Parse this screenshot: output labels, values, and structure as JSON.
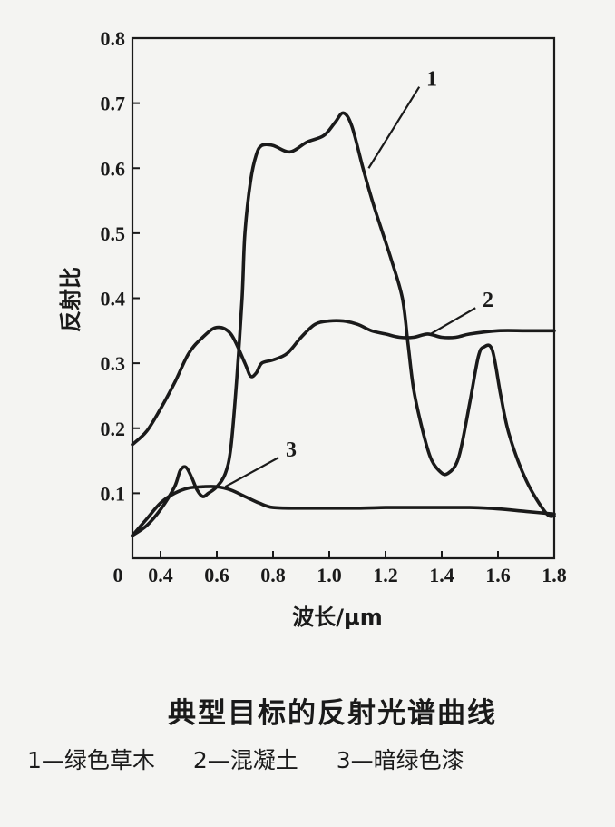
{
  "chart_data": {
    "type": "line",
    "title": "",
    "xlabel": "波长/μm",
    "ylabel": "反射比",
    "xlim": [
      0.3,
      1.8
    ],
    "ylim": [
      0,
      0.8
    ],
    "x_ticks": [
      0.4,
      0.6,
      0.8,
      1.0,
      1.2,
      1.4,
      1.6,
      1.8
    ],
    "x_tick_labels": [
      "0.4",
      "0.6",
      "0.8",
      "1.0",
      "1.2",
      "1.4",
      "1.6",
      "1.8"
    ],
    "y_ticks": [
      0.1,
      0.2,
      0.3,
      0.4,
      0.5,
      0.6,
      0.7,
      0.8
    ],
    "y_tick_labels": [
      "0.1",
      "0.2",
      "0.3",
      "0.4",
      "0.5",
      "0.6",
      "0.7",
      "0.8"
    ],
    "origin_label": "0",
    "grid": false,
    "series": [
      {
        "label": "1",
        "color": "#1a1a1a",
        "x": [
          0.3,
          0.35,
          0.4,
          0.45,
          0.47,
          0.49,
          0.51,
          0.53,
          0.55,
          0.57,
          0.6,
          0.63,
          0.65,
          0.67,
          0.69,
          0.7,
          0.72,
          0.74,
          0.76,
          0.8,
          0.86,
          0.92,
          0.98,
          1.02,
          1.05,
          1.08,
          1.12,
          1.16,
          1.22,
          1.26,
          1.28,
          1.3,
          1.33,
          1.36,
          1.39,
          1.42,
          1.46,
          1.5,
          1.53,
          1.55,
          1.58,
          1.61,
          1.64,
          1.7,
          1.77,
          1.8
        ],
        "y": [
          0.035,
          0.05,
          0.075,
          0.11,
          0.135,
          0.14,
          0.125,
          0.105,
          0.095,
          0.1,
          0.11,
          0.13,
          0.17,
          0.27,
          0.4,
          0.5,
          0.58,
          0.62,
          0.635,
          0.635,
          0.625,
          0.64,
          0.65,
          0.67,
          0.685,
          0.665,
          0.6,
          0.54,
          0.46,
          0.4,
          0.33,
          0.26,
          0.2,
          0.155,
          0.135,
          0.13,
          0.155,
          0.24,
          0.31,
          0.325,
          0.32,
          0.25,
          0.19,
          0.12,
          0.07,
          0.065
        ]
      },
      {
        "label": "2",
        "color": "#1a1a1a",
        "x": [
          0.3,
          0.35,
          0.4,
          0.45,
          0.5,
          0.55,
          0.6,
          0.65,
          0.7,
          0.72,
          0.74,
          0.76,
          0.8,
          0.85,
          0.9,
          0.95,
          1.0,
          1.05,
          1.1,
          1.15,
          1.2,
          1.25,
          1.3,
          1.35,
          1.4,
          1.45,
          1.5,
          1.6,
          1.7,
          1.8
        ],
        "y": [
          0.175,
          0.195,
          0.23,
          0.27,
          0.315,
          0.34,
          0.355,
          0.345,
          0.3,
          0.28,
          0.285,
          0.3,
          0.305,
          0.315,
          0.34,
          0.36,
          0.365,
          0.365,
          0.36,
          0.35,
          0.345,
          0.34,
          0.34,
          0.345,
          0.34,
          0.34,
          0.345,
          0.35,
          0.35,
          0.35
        ]
      },
      {
        "label": "3",
        "color": "#1a1a1a",
        "x": [
          0.3,
          0.35,
          0.4,
          0.45,
          0.5,
          0.55,
          0.6,
          0.65,
          0.7,
          0.75,
          0.8,
          0.9,
          1.0,
          1.1,
          1.2,
          1.3,
          1.4,
          1.5,
          1.6,
          1.7,
          1.8
        ],
        "y": [
          0.035,
          0.06,
          0.085,
          0.1,
          0.108,
          0.11,
          0.11,
          0.105,
          0.095,
          0.085,
          0.078,
          0.077,
          0.077,
          0.077,
          0.078,
          0.078,
          0.078,
          0.078,
          0.076,
          0.072,
          0.068
        ]
      }
    ]
  },
  "caption": {
    "title": "典型目标的反射光谱曲线",
    "legend": [
      {
        "number": "1",
        "text": "1—绿色草木"
      },
      {
        "number": "2",
        "text": "2—混凝土"
      },
      {
        "number": "3",
        "text": "3—暗绿色漆"
      }
    ]
  }
}
